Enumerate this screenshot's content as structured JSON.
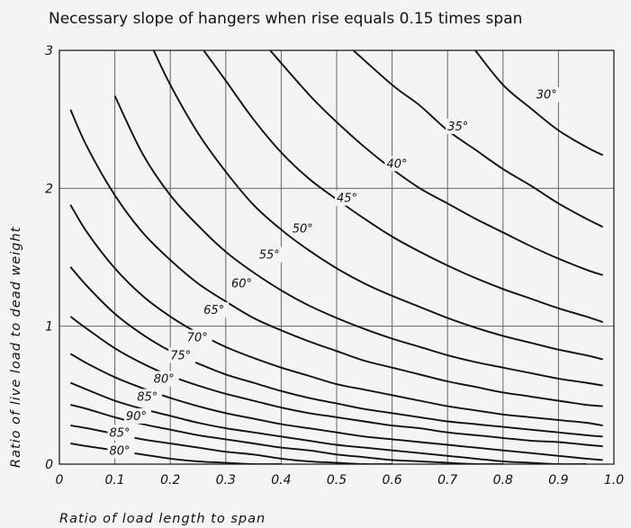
{
  "chart_data": {
    "type": "line",
    "title": "Necessary slope of hangers when rise equals 0.15 times span",
    "xlabel": "Ratio of load length to span",
    "ylabel": "Ratio of live load to dead weight",
    "xlim": [
      0,
      1.0
    ],
    "ylim": [
      0,
      3
    ],
    "x_tick_labels": [
      "0",
      "0.1",
      "0.2",
      "0.3",
      "0.4",
      "0.5",
      "0.6",
      "0.7",
      "0.8",
      "0.9",
      "1.0"
    ],
    "y_tick_labels": [
      "0",
      "1",
      "2",
      "3"
    ],
    "grid": true,
    "series": [
      {
        "name": "30°",
        "x": [
          0.75,
          0.8,
          0.85,
          0.9,
          0.95,
          0.98
        ],
        "y": [
          3.0,
          2.75,
          2.58,
          2.42,
          2.3,
          2.24
        ]
      },
      {
        "name": "35°",
        "x": [
          0.53,
          0.6,
          0.65,
          0.7,
          0.75,
          0.8,
          0.85,
          0.9,
          0.95,
          0.98
        ],
        "y": [
          3.0,
          2.75,
          2.6,
          2.42,
          2.28,
          2.14,
          2.02,
          1.89,
          1.78,
          1.72
        ]
      },
      {
        "name": "40°",
        "x": [
          0.38,
          0.45,
          0.5,
          0.55,
          0.6,
          0.65,
          0.7,
          0.75,
          0.8,
          0.85,
          0.9,
          0.95,
          0.98
        ],
        "y": [
          3.0,
          2.68,
          2.48,
          2.3,
          2.14,
          2.0,
          1.89,
          1.78,
          1.68,
          1.58,
          1.49,
          1.41,
          1.37
        ]
      },
      {
        "name": "45°",
        "x": [
          0.26,
          0.3,
          0.35,
          0.4,
          0.45,
          0.5,
          0.55,
          0.6,
          0.65,
          0.7,
          0.75,
          0.8,
          0.85,
          0.9,
          0.95,
          0.98
        ],
        "y": [
          3.0,
          2.78,
          2.5,
          2.26,
          2.07,
          1.92,
          1.78,
          1.65,
          1.54,
          1.44,
          1.35,
          1.27,
          1.2,
          1.13,
          1.07,
          1.03
        ]
      },
      {
        "name": "50°",
        "x": [
          0.17,
          0.2,
          0.25,
          0.3,
          0.35,
          0.4,
          0.45,
          0.5,
          0.55,
          0.6,
          0.65,
          0.7,
          0.75,
          0.8,
          0.85,
          0.9,
          0.95,
          0.98
        ],
        "y": [
          3.0,
          2.75,
          2.4,
          2.12,
          1.88,
          1.7,
          1.55,
          1.42,
          1.31,
          1.22,
          1.14,
          1.06,
          0.99,
          0.93,
          0.88,
          0.83,
          0.79,
          0.76
        ]
      },
      {
        "name": "55°",
        "x": [
          0.1,
          0.15,
          0.2,
          0.25,
          0.3,
          0.35,
          0.4,
          0.45,
          0.5,
          0.55,
          0.6,
          0.65,
          0.7,
          0.75,
          0.8,
          0.85,
          0.9,
          0.95,
          0.98
        ],
        "y": [
          2.67,
          2.25,
          1.95,
          1.73,
          1.54,
          1.39,
          1.26,
          1.15,
          1.06,
          0.98,
          0.91,
          0.85,
          0.79,
          0.74,
          0.7,
          0.66,
          0.62,
          0.59,
          0.57
        ]
      },
      {
        "name": "60°",
        "x": [
          0.02,
          0.05,
          0.1,
          0.15,
          0.2,
          0.25,
          0.3,
          0.35,
          0.4,
          0.45,
          0.5,
          0.55,
          0.6,
          0.65,
          0.7,
          0.75,
          0.8,
          0.85,
          0.9,
          0.95,
          0.98
        ],
        "y": [
          2.57,
          2.3,
          1.95,
          1.68,
          1.48,
          1.31,
          1.18,
          1.06,
          0.97,
          0.89,
          0.82,
          0.75,
          0.7,
          0.65,
          0.6,
          0.56,
          0.52,
          0.49,
          0.46,
          0.43,
          0.42
        ]
      },
      {
        "name": "65°",
        "x": [
          0.02,
          0.05,
          0.1,
          0.15,
          0.2,
          0.25,
          0.3,
          0.35,
          0.4,
          0.45,
          0.5,
          0.55,
          0.6,
          0.65,
          0.7,
          0.75,
          0.8,
          0.85,
          0.9,
          0.95,
          0.98
        ],
        "y": [
          1.88,
          1.68,
          1.42,
          1.22,
          1.07,
          0.95,
          0.85,
          0.77,
          0.7,
          0.64,
          0.58,
          0.54,
          0.5,
          0.46,
          0.42,
          0.39,
          0.36,
          0.34,
          0.32,
          0.3,
          0.28
        ]
      },
      {
        "name": "70°",
        "x": [
          0.02,
          0.05,
          0.1,
          0.15,
          0.2,
          0.25,
          0.3,
          0.35,
          0.4,
          0.45,
          0.5,
          0.55,
          0.6,
          0.65,
          0.7,
          0.75,
          0.8,
          0.85,
          0.9,
          0.95,
          0.98
        ],
        "y": [
          1.43,
          1.29,
          1.09,
          0.94,
          0.82,
          0.73,
          0.65,
          0.59,
          0.53,
          0.48,
          0.44,
          0.4,
          0.37,
          0.34,
          0.31,
          0.29,
          0.27,
          0.25,
          0.23,
          0.21,
          0.2
        ]
      },
      {
        "name": "75°",
        "x": [
          0.02,
          0.05,
          0.1,
          0.15,
          0.2,
          0.25,
          0.3,
          0.35,
          0.4,
          0.45,
          0.5,
          0.55,
          0.6,
          0.65,
          0.7,
          0.75,
          0.8,
          0.85,
          0.9,
          0.95,
          0.98
        ],
        "y": [
          1.07,
          0.98,
          0.84,
          0.73,
          0.64,
          0.57,
          0.51,
          0.46,
          0.41,
          0.37,
          0.34,
          0.31,
          0.28,
          0.26,
          0.23,
          0.21,
          0.19,
          0.17,
          0.16,
          0.14,
          0.13
        ]
      },
      {
        "name": "80°",
        "x": [
          0.02,
          0.05,
          0.1,
          0.15,
          0.2,
          0.25,
          0.3,
          0.35,
          0.4,
          0.45,
          0.5,
          0.55,
          0.6,
          0.65,
          0.7,
          0.75,
          0.8,
          0.85,
          0.9,
          0.95,
          0.98
        ],
        "y": [
          0.8,
          0.73,
          0.63,
          0.55,
          0.48,
          0.42,
          0.37,
          0.33,
          0.29,
          0.26,
          0.23,
          0.2,
          0.18,
          0.16,
          0.14,
          0.12,
          0.1,
          0.08,
          0.06,
          0.04,
          0.03
        ]
      },
      {
        "name": "85°",
        "x": [
          0.02,
          0.05,
          0.1,
          0.15,
          0.2,
          0.25,
          0.3,
          0.35,
          0.4,
          0.45,
          0.5,
          0.55,
          0.6,
          0.65,
          0.7,
          0.75,
          0.8,
          0.85,
          0.9,
          0.95
        ],
        "y": [
          0.59,
          0.54,
          0.46,
          0.4,
          0.35,
          0.3,
          0.26,
          0.23,
          0.2,
          0.17,
          0.14,
          0.12,
          0.1,
          0.08,
          0.06,
          0.04,
          0.02,
          0.01,
          0.0,
          0.0
        ]
      },
      {
        "name": "90°",
        "x": [
          0.02,
          0.05,
          0.1,
          0.15,
          0.2,
          0.25,
          0.3,
          0.35,
          0.4,
          0.45,
          0.5,
          0.55,
          0.6,
          0.65,
          0.7,
          0.75,
          0.8
        ],
        "y": [
          0.43,
          0.4,
          0.34,
          0.29,
          0.25,
          0.21,
          0.18,
          0.15,
          0.12,
          0.1,
          0.07,
          0.05,
          0.03,
          0.02,
          0.01,
          0.0,
          0.0
        ]
      },
      {
        "name": "85°",
        "x": [
          0.02,
          0.05,
          0.1,
          0.15,
          0.2,
          0.25,
          0.3,
          0.35,
          0.4,
          0.45,
          0.5,
          0.55,
          0.6
        ],
        "y": [
          0.28,
          0.26,
          0.22,
          0.18,
          0.15,
          0.12,
          0.09,
          0.07,
          0.04,
          0.02,
          0.01,
          0.0,
          0.0
        ]
      },
      {
        "name": "80°",
        "x": [
          0.02,
          0.05,
          0.1,
          0.15,
          0.2,
          0.25,
          0.3,
          0.35,
          0.4
        ],
        "y": [
          0.15,
          0.13,
          0.1,
          0.07,
          0.04,
          0.02,
          0.01,
          0.0,
          0.0
        ]
      }
    ],
    "curve_labels": [
      {
        "text": "30°",
        "x": 0.86,
        "y": 2.65
      },
      {
        "text": "35°",
        "x": 0.7,
        "y": 2.42
      },
      {
        "text": "40°",
        "x": 0.59,
        "y": 2.15
      },
      {
        "text": "45°",
        "x": 0.5,
        "y": 1.9
      },
      {
        "text": "50°",
        "x": 0.42,
        "y": 1.68
      },
      {
        "text": "55°",
        "x": 0.36,
        "y": 1.49
      },
      {
        "text": "60°",
        "x": 0.31,
        "y": 1.28
      },
      {
        "text": "65°",
        "x": 0.26,
        "y": 1.09
      },
      {
        "text": "70°",
        "x": 0.23,
        "y": 0.89
      },
      {
        "text": "75°",
        "x": 0.2,
        "y": 0.76
      },
      {
        "text": "80°",
        "x": 0.17,
        "y": 0.59
      },
      {
        "text": "85°",
        "x": 0.14,
        "y": 0.46
      },
      {
        "text": "90°",
        "x": 0.12,
        "y": 0.32
      },
      {
        "text": "85°",
        "x": 0.09,
        "y": 0.2
      },
      {
        "text": "80°",
        "x": 0.09,
        "y": 0.07
      }
    ]
  }
}
